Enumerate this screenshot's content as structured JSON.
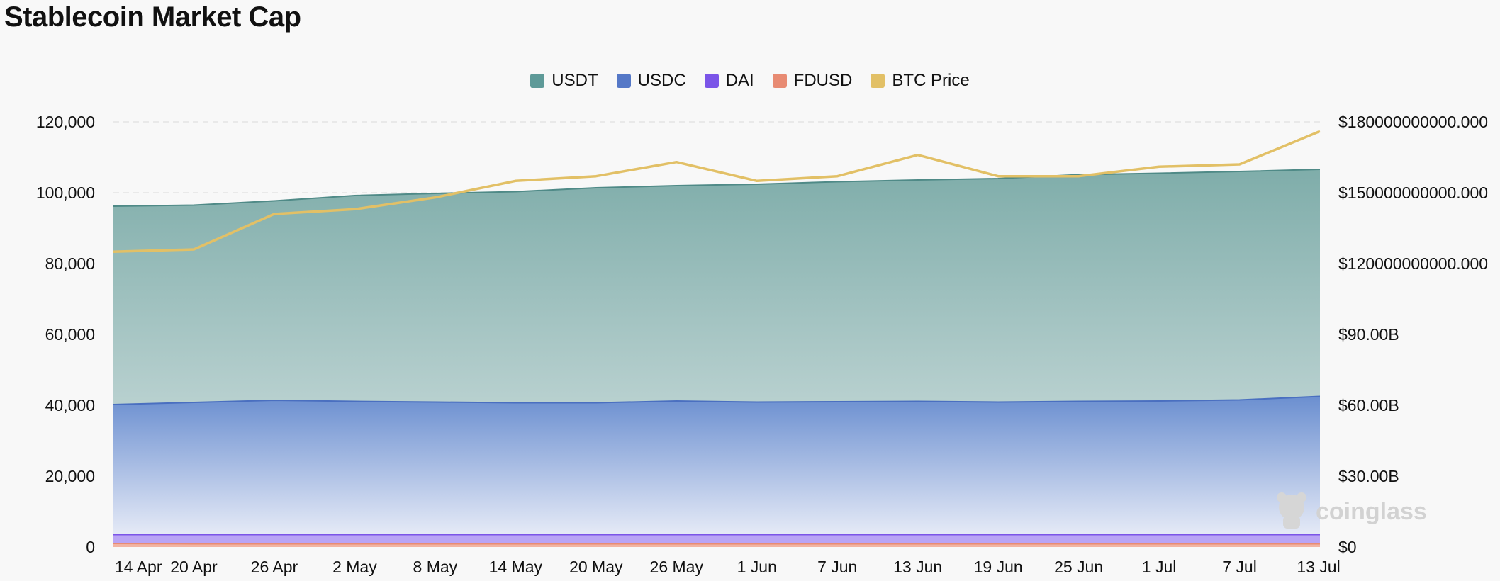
{
  "title": "Stablecoin Market Cap",
  "legend": [
    {
      "label": "USDT",
      "color": "#5e9a98"
    },
    {
      "label": "USDC",
      "color": "#5578c7"
    },
    {
      "label": "DAI",
      "color": "#7b55e8"
    },
    {
      "label": "FDUSD",
      "color": "#e88b73"
    },
    {
      "label": "BTC Price",
      "color": "#e2c066"
    }
  ],
  "watermark": "coinglass",
  "chart_data": {
    "type": "area",
    "grid": true,
    "legend_position": "top-center",
    "categories": [
      "14 Apr",
      "20 Apr",
      "26 Apr",
      "2 May",
      "8 May",
      "14 May",
      "20 May",
      "26 May",
      "1 Jun",
      "7 Jun",
      "13 Jun",
      "19 Jun",
      "25 Jun",
      "1 Jul",
      "7 Jul",
      "13 Jul"
    ],
    "left_axis": {
      "ylim": [
        0,
        120000
      ],
      "ticks": [
        "0",
        "20,000",
        "40,000",
        "60,000",
        "80,000",
        "100,000",
        "120,000"
      ]
    },
    "right_axis": {
      "ylim": [
        0,
        180000000000
      ],
      "ticks": [
        "$0",
        "$30.00B",
        "$60.00B",
        "$90.00B",
        "$120000000000.000",
        "$150000000000.000",
        "$180000000000.000"
      ]
    },
    "series": [
      {
        "name": "USDT",
        "axis": "left",
        "stacked": true,
        "values": [
          96200,
          96500,
          97700,
          99200,
          99800,
          100300,
          101400,
          102000,
          102400,
          103100,
          103600,
          104000,
          105100,
          105500,
          106000,
          106600
        ]
      },
      {
        "name": "USDC",
        "axis": "left",
        "stacked": true,
        "values": [
          40200,
          40800,
          41400,
          41100,
          40900,
          40700,
          40700,
          41200,
          40900,
          41000,
          41100,
          40900,
          41100,
          41200,
          41500,
          42500
        ]
      },
      {
        "name": "DAI",
        "axis": "left",
        "stacked": true,
        "values": [
          3500,
          3500,
          3500,
          3500,
          3500,
          3500,
          3500,
          3500,
          3500,
          3500,
          3500,
          3500,
          3500,
          3500,
          3500,
          3500
        ]
      },
      {
        "name": "FDUSD",
        "axis": "left",
        "stacked": true,
        "values": [
          1000,
          900,
          900,
          900,
          900,
          900,
          900,
          900,
          900,
          900,
          900,
          900,
          900,
          900,
          900,
          900
        ]
      },
      {
        "name": "BTC Price",
        "axis": "right",
        "type": "line",
        "values": [
          125000000000,
          126000000000,
          141000000000,
          143000000000,
          148000000000,
          155000000000,
          157000000000,
          163000000000,
          155000000000,
          157000000000,
          166000000000,
          157000000000,
          157000000000,
          161000000000,
          162000000000,
          176000000000
        ]
      }
    ]
  }
}
